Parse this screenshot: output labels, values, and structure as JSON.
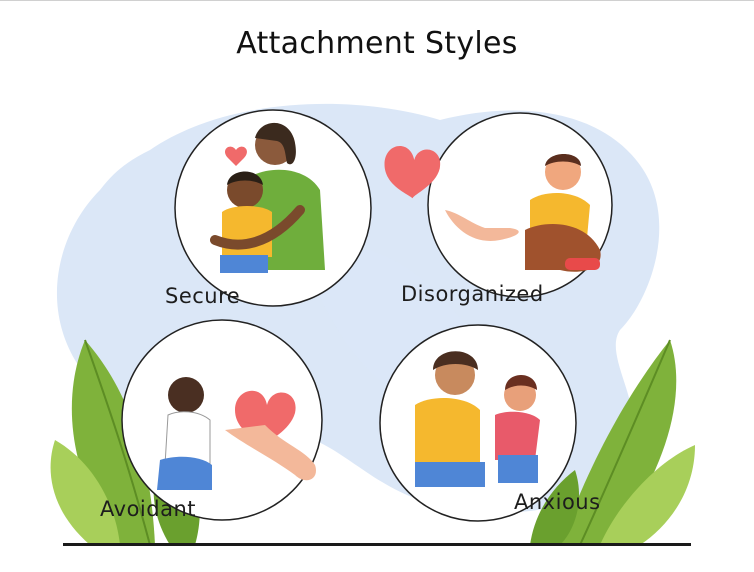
{
  "title": "Attachment Styles",
  "styles": [
    {
      "label": "Secure"
    },
    {
      "label": "Disorganized"
    },
    {
      "label": "Avoidant"
    },
    {
      "label": "Anxious"
    }
  ],
  "colors": {
    "background_blob": "#dbe7f7",
    "leaf_green": "#7fb23b",
    "leaf_light": "#a8cf5a",
    "heart": "#f06a6a",
    "shirt_yellow": "#f5b82e",
    "shirt_green": "#6fae3c",
    "jeans_blue": "#4f86d6"
  }
}
